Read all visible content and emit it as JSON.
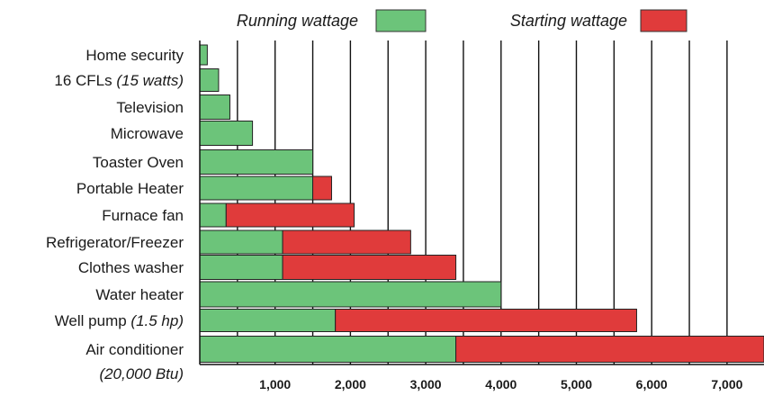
{
  "chart_data": {
    "type": "bar",
    "orientation": "horizontal",
    "stacked": true,
    "grid": true,
    "legend_position": "top",
    "xlim": [
      0,
      7500
    ],
    "xticks": [
      1000,
      2000,
      3000,
      4000,
      5000,
      6000,
      7000
    ],
    "xtick_labels": [
      "1,000",
      "2,000",
      "3,000",
      "4,000",
      "5,000",
      "6,000",
      "7,000"
    ],
    "categories": [
      {
        "text": "Home security",
        "note": "",
        "note2": ""
      },
      {
        "text": "16 CFLs ",
        "note": "(15 watts)",
        "note2": ""
      },
      {
        "text": "Television",
        "note": "",
        "note2": ""
      },
      {
        "text": "Microwave",
        "note": "",
        "note2": ""
      },
      {
        "text": "Toaster Oven",
        "note": "",
        "note2": ""
      },
      {
        "text": "Portable Heater",
        "note": "",
        "note2": ""
      },
      {
        "text": "Furnace fan",
        "note": "",
        "note2": ""
      },
      {
        "text": "Refrigerator/Freezer",
        "note": "",
        "note2": ""
      },
      {
        "text": "Clothes washer",
        "note": "",
        "note2": ""
      },
      {
        "text": "Water heater",
        "note": "",
        "note2": ""
      },
      {
        "text": "Well pump ",
        "note": "(1.5 hp)",
        "note2": ""
      },
      {
        "text": "Air conditioner",
        "note": "",
        "note2": "(20,000 Btu)"
      }
    ],
    "series": [
      {
        "name": "Running wattage",
        "color": "#6cc47a",
        "values": [
          100,
          250,
          400,
          700,
          1500,
          1500,
          350,
          1100,
          1100,
          4000,
          1800,
          3400
        ]
      },
      {
        "name": "Starting wattage",
        "color": "#e03b3b",
        "values": [
          0,
          0,
          0,
          0,
          0,
          250,
          1700,
          1700,
          2300,
          0,
          4000,
          4100
        ]
      }
    ]
  }
}
